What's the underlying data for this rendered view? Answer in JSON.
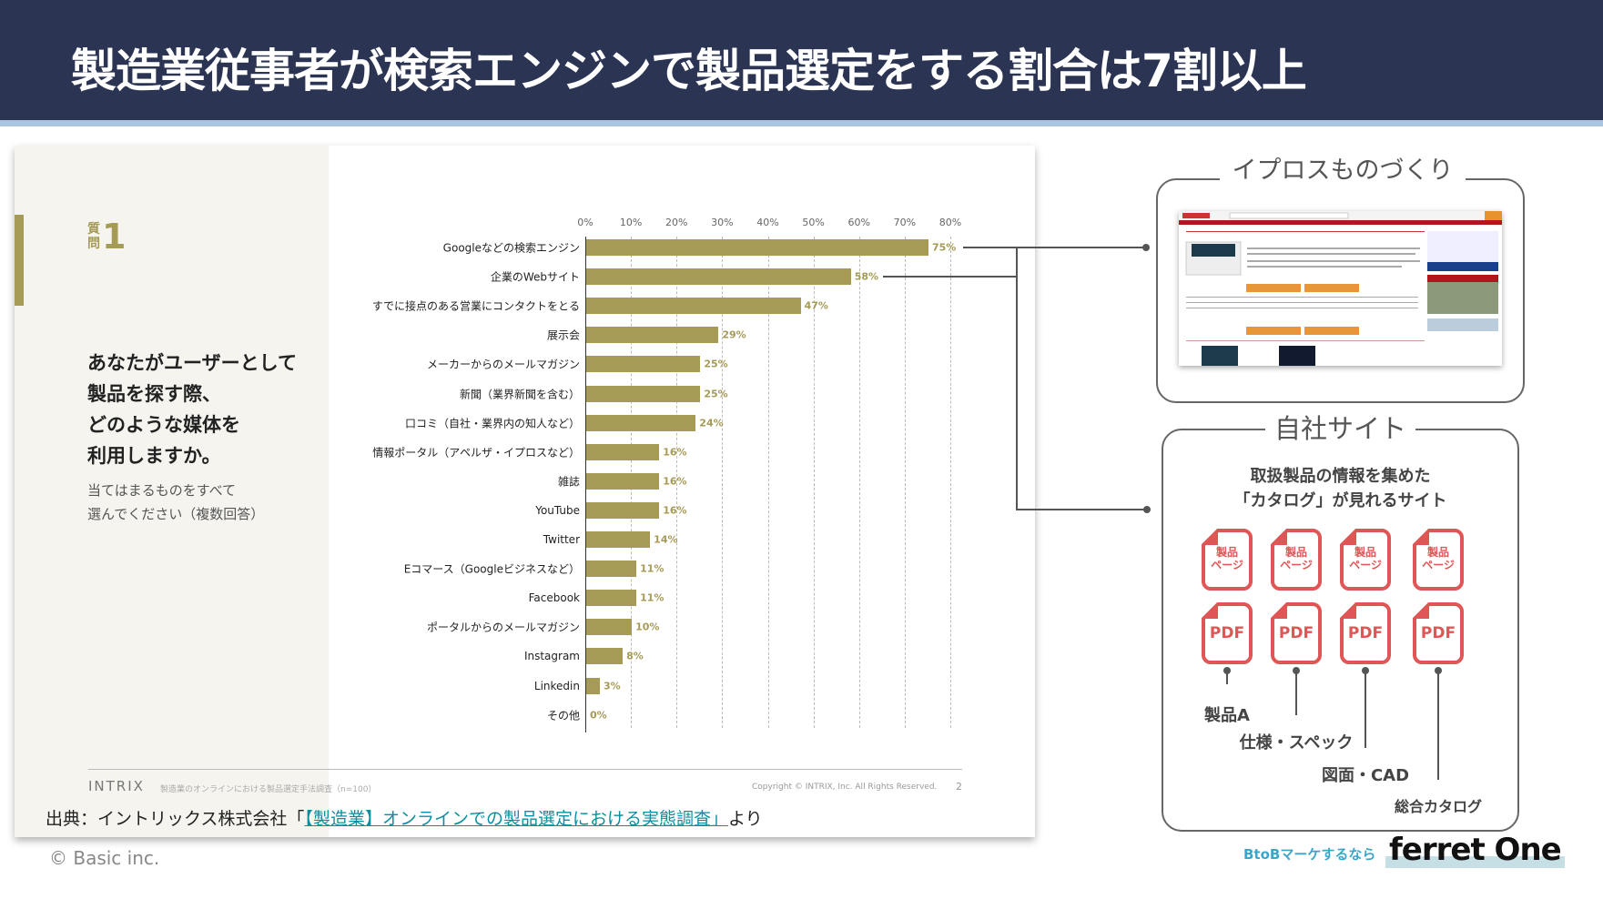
{
  "header": {
    "title": "製造業従事者が検索エンジンで製品選定をする割合は7割以上"
  },
  "slide": {
    "question_prefix": "質問",
    "question_number": "1",
    "question": "あなたがユーザーとして\n製品を探す際、\nどのような媒体を\n利用しますか。",
    "instruction": "当てはまるものをすべて\n選んでください（複数回答）",
    "brand": "INTRIX",
    "footnote": "製造業のオンラインにおける製品選定手法調査（n=100）",
    "copyright": "Copyright © INTRIX, Inc. All Rights Reserved.",
    "page": "2"
  },
  "chart_data": {
    "type": "bar",
    "orientation": "horizontal",
    "categories": [
      "Googleなどの検索エンジン",
      "企業のWebサイト",
      "すでに接点のある営業にコンタクトをとる",
      "展示会",
      "メーカーからのメールマガジン",
      "新聞（業界新聞を含む）",
      "口コミ（自社・業界内の知人など）",
      "情報ポータル（アペルザ・イプロスなど）",
      "雑誌",
      "YouTube",
      "Twitter",
      "Eコマース（Googleビジネスなど）",
      "Facebook",
      "ポータルからのメールマガジン",
      "Instagram",
      "Linkedin",
      "その他"
    ],
    "values": [
      75,
      58,
      47,
      29,
      25,
      25,
      24,
      16,
      16,
      16,
      14,
      11,
      11,
      10,
      8,
      3,
      0
    ],
    "xlim": [
      0,
      80
    ],
    "ticks": [
      "0%",
      "10%",
      "20%",
      "30%",
      "40%",
      "50%",
      "60%",
      "70%",
      "80%"
    ],
    "grid": true,
    "bar_color": "#a59a56"
  },
  "source": {
    "prefix": "出典：イントリックス株式会社「",
    "link": "【製造業】オンラインでの製品選定における実態調査」",
    "suffix": "より"
  },
  "footer": {
    "copyright": "© Basic inc."
  },
  "ipros": {
    "title": "イプロスものづくり"
  },
  "own_site": {
    "title": "自社サイト",
    "description": "取扱製品の情報を集めた\n「カタログ」が見れるサイト",
    "page_icon_label": "製品\nページ",
    "pdf_label": "PDF",
    "labels": [
      "製品A",
      "仕様・スペック",
      "図面・CAD",
      "総合カタログ"
    ]
  },
  "brand": {
    "tagline": "BtoBマーケするなら",
    "logo": "ferret One"
  }
}
